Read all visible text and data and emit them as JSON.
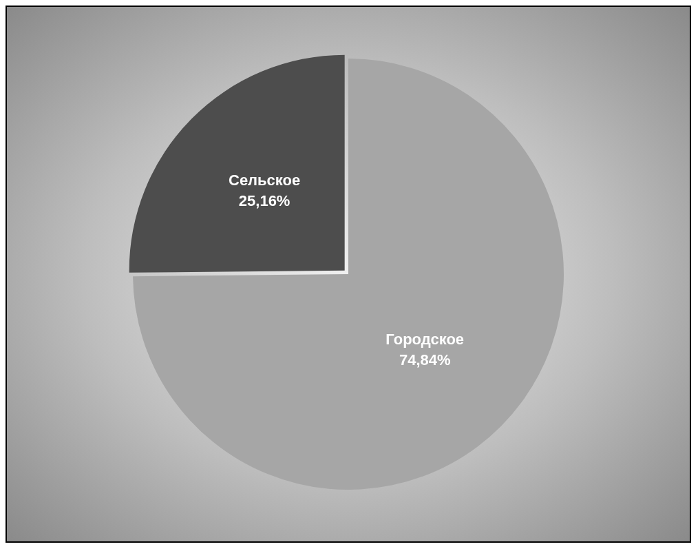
{
  "chart_data": {
    "type": "pie",
    "categories": [
      "Городское",
      "Сельское"
    ],
    "values": [
      74.84,
      25.16
    ],
    "colors": [
      "#a6a6a6",
      "#4d4d4d"
    ],
    "value_labels": [
      "74,84%",
      "25,16%"
    ]
  }
}
